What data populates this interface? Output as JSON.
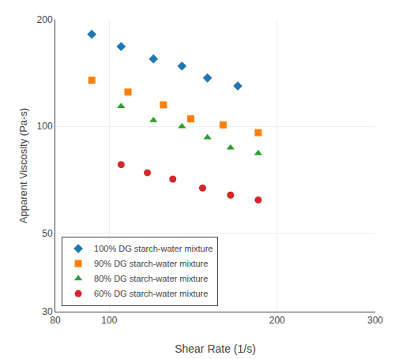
{
  "chart_data": {
    "type": "scatter",
    "x_label": "Shear Rate (1/s)",
    "y_label": "Apparent Viscosity (Pa-s)",
    "log": true,
    "xlim": [
      80,
      300
    ],
    "ylim": [
      30,
      200
    ],
    "xticks": [
      80,
      100,
      200,
      300
    ],
    "yticks": [
      30,
      50,
      100,
      200
    ],
    "grid": true,
    "legend": "lower left",
    "series": [
      {
        "name": "100% DG starch-water mixture",
        "marker": "diamond",
        "x": [
          93,
          105,
          120,
          135,
          150,
          170
        ],
        "values": [
          182,
          168,
          155,
          148,
          137,
          130
        ]
      },
      {
        "name": "90% DG starch-water mixture",
        "marker": "square",
        "x": [
          93,
          108,
          125,
          140,
          160,
          185
        ],
        "values": [
          135,
          125,
          115,
          105,
          101,
          96
        ]
      },
      {
        "name": "80% DG starch-water mixture",
        "marker": "triangle-up",
        "x": [
          105,
          120,
          135,
          150,
          165,
          185
        ],
        "values": [
          114,
          104,
          100,
          93,
          87,
          84
        ]
      },
      {
        "name": "60% DG starch-water mixture",
        "marker": "circle",
        "x": [
          105,
          117,
          130,
          147,
          165,
          185
        ],
        "values": [
          78,
          74,
          71,
          67,
          64,
          62
        ]
      }
    ]
  }
}
